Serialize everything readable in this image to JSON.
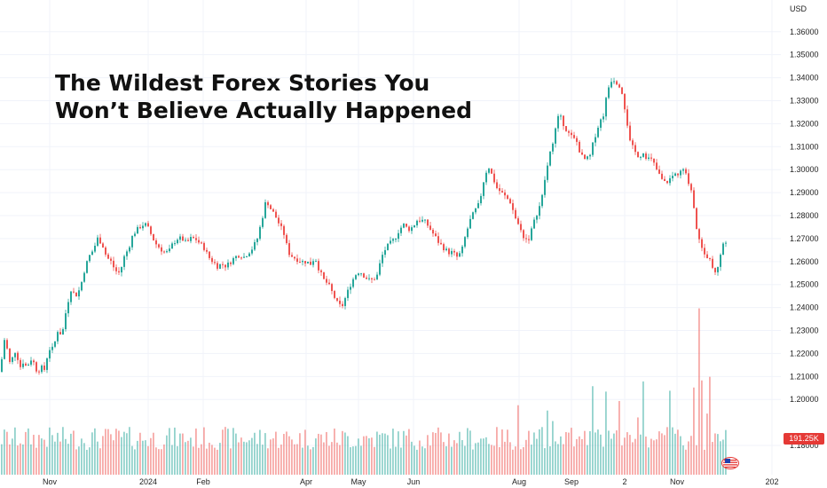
{
  "headline": {
    "line1": "The Wildest Forex Stories You",
    "line2": "Won’t Believe Actually Happened"
  },
  "currency": "USD",
  "volume_badge": "191.25K",
  "colors": {
    "up": "#26a69a",
    "down": "#ef5350",
    "grid": "#f0f3fa"
  },
  "chart_data": {
    "type": "candlestick",
    "y_ticks": [
      "1.36000",
      "1.35000",
      "1.34000",
      "1.33000",
      "1.32000",
      "1.31000",
      "1.30000",
      "1.29000",
      "1.28000",
      "1.27000",
      "1.26000",
      "1.25000",
      "1.24000",
      "1.23000",
      "1.22000",
      "1.21000",
      "1.20000",
      "1.18000"
    ],
    "x_ticks": [
      "Nov",
      "2024",
      "Feb",
      "Apr",
      "May",
      "Jun",
      "Aug",
      "Sep",
      "2",
      "Nov",
      "202"
    ],
    "ylim": [
      1.175,
      1.363
    ],
    "grid": true,
    "anchors": [
      [
        0,
        1.212
      ],
      [
        5,
        1.226
      ],
      [
        8,
        1.222
      ],
      [
        12,
        1.214
      ],
      [
        16,
        1.222
      ],
      [
        20,
        1.218
      ],
      [
        24,
        1.213
      ],
      [
        27,
        1.218
      ],
      [
        30,
        1.213
      ],
      [
        34,
        1.218
      ],
      [
        38,
        1.216
      ],
      [
        42,
        1.212
      ],
      [
        46,
        1.214
      ],
      [
        50,
        1.213
      ],
      [
        55,
        1.222
      ],
      [
        60,
        1.222
      ],
      [
        65,
        1.23
      ],
      [
        70,
        1.228
      ],
      [
        75,
        1.24
      ],
      [
        80,
        1.248
      ],
      [
        85,
        1.245
      ],
      [
        90,
        1.248
      ],
      [
        95,
        1.256
      ],
      [
        100,
        1.262
      ],
      [
        105,
        1.265
      ],
      [
        110,
        1.27
      ],
      [
        115,
        1.268
      ],
      [
        120,
        1.262
      ],
      [
        125,
        1.26
      ],
      [
        130,
        1.256
      ],
      [
        135,
        1.255
      ],
      [
        140,
        1.262
      ],
      [
        145,
        1.266
      ],
      [
        150,
        1.272
      ],
      [
        155,
        1.274
      ],
      [
        160,
        1.276
      ],
      [
        165,
        1.276
      ],
      [
        170,
        1.272
      ],
      [
        175,
        1.268
      ],
      [
        180,
        1.266
      ],
      [
        185,
        1.264
      ],
      [
        190,
        1.264
      ],
      [
        195,
        1.268
      ],
      [
        200,
        1.27
      ],
      [
        205,
        1.27
      ],
      [
        210,
        1.268
      ],
      [
        215,
        1.27
      ],
      [
        220,
        1.27
      ],
      [
        225,
        1.268
      ],
      [
        230,
        1.266
      ],
      [
        235,
        1.262
      ],
      [
        240,
        1.26
      ],
      [
        245,
        1.258
      ],
      [
        250,
        1.259
      ],
      [
        255,
        1.258
      ],
      [
        260,
        1.26
      ],
      [
        265,
        1.262
      ],
      [
        270,
        1.263
      ],
      [
        275,
        1.262
      ],
      [
        280,
        1.264
      ],
      [
        285,
        1.266
      ],
      [
        290,
        1.27
      ],
      [
        295,
        1.278
      ],
      [
        300,
        1.287
      ],
      [
        305,
        1.283
      ],
      [
        310,
        1.28
      ],
      [
        315,
        1.276
      ],
      [
        320,
        1.272
      ],
      [
        325,
        1.264
      ],
      [
        330,
        1.262
      ],
      [
        335,
        1.261
      ],
      [
        340,
        1.26
      ],
      [
        345,
        1.26
      ],
      [
        350,
        1.259
      ],
      [
        355,
        1.262
      ],
      [
        360,
        1.256
      ],
      [
        365,
        1.252
      ],
      [
        370,
        1.25
      ],
      [
        375,
        1.246
      ],
      [
        380,
        1.242
      ],
      [
        385,
        1.24
      ],
      [
        390,
        1.245
      ],
      [
        395,
        1.25
      ],
      [
        400,
        1.254
      ],
      [
        405,
        1.256
      ],
      [
        410,
        1.254
      ],
      [
        415,
        1.252
      ],
      [
        420,
        1.252
      ],
      [
        425,
        1.254
      ],
      [
        430,
        1.262
      ],
      [
        435,
        1.266
      ],
      [
        440,
        1.268
      ],
      [
        445,
        1.27
      ],
      [
        450,
        1.274
      ],
      [
        455,
        1.276
      ],
      [
        460,
        1.274
      ],
      [
        465,
        1.275
      ],
      [
        470,
        1.278
      ],
      [
        475,
        1.278
      ],
      [
        480,
        1.277
      ],
      [
        485,
        1.274
      ],
      [
        490,
        1.271
      ],
      [
        495,
        1.268
      ],
      [
        500,
        1.266
      ],
      [
        505,
        1.264
      ],
      [
        510,
        1.264
      ],
      [
        515,
        1.262
      ],
      [
        520,
        1.264
      ],
      [
        525,
        1.272
      ],
      [
        530,
        1.278
      ],
      [
        535,
        1.282
      ],
      [
        540,
        1.285
      ],
      [
        545,
        1.295
      ],
      [
        550,
        1.302
      ],
      [
        555,
        1.297
      ],
      [
        560,
        1.292
      ],
      [
        565,
        1.29
      ],
      [
        570,
        1.288
      ],
      [
        575,
        1.286
      ],
      [
        580,
        1.28
      ],
      [
        585,
        1.275
      ],
      [
        590,
        1.271
      ],
      [
        595,
        1.269
      ],
      [
        600,
        1.275
      ],
      [
        605,
        1.281
      ],
      [
        610,
        1.286
      ],
      [
        615,
        1.298
      ],
      [
        620,
        1.307
      ],
      [
        625,
        1.316
      ],
      [
        630,
        1.324
      ],
      [
        635,
        1.32
      ],
      [
        640,
        1.316
      ],
      [
        645,
        1.314
      ],
      [
        650,
        1.312
      ],
      [
        655,
        1.306
      ],
      [
        660,
        1.304
      ],
      [
        665,
        1.306
      ],
      [
        670,
        1.314
      ],
      [
        675,
        1.32
      ],
      [
        680,
        1.324
      ],
      [
        685,
        1.335
      ],
      [
        690,
        1.34
      ],
      [
        695,
        1.338
      ],
      [
        700,
        1.336
      ],
      [
        705,
        1.325
      ],
      [
        710,
        1.312
      ],
      [
        715,
        1.308
      ],
      [
        720,
        1.306
      ],
      [
        725,
        1.307
      ],
      [
        730,
        1.305
      ],
      [
        735,
        1.304
      ],
      [
        740,
        1.3
      ],
      [
        745,
        1.296
      ],
      [
        750,
        1.294
      ],
      [
        755,
        1.296
      ],
      [
        760,
        1.298
      ],
      [
        765,
        1.298
      ],
      [
        770,
        1.3
      ],
      [
        775,
        1.296
      ],
      [
        780,
        1.29
      ],
      [
        785,
        1.274
      ],
      [
        790,
        1.268
      ],
      [
        795,
        1.263
      ],
      [
        800,
        1.261
      ],
      [
        805,
        1.255
      ],
      [
        810,
        1.259
      ],
      [
        815,
        1.268
      ],
      [
        820,
        1.27
      ]
    ]
  }
}
